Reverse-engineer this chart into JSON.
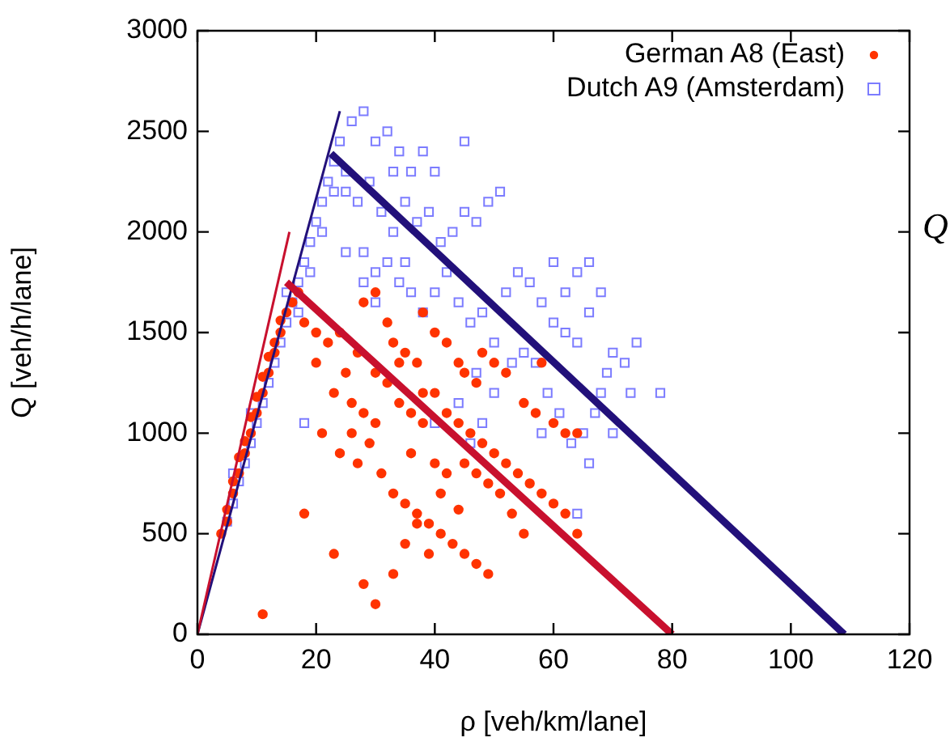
{
  "chart_data": {
    "type": "scatter",
    "xlabel": "ρ [veh/km/lane]",
    "ylabel": "Q [veh/h/lane]",
    "xlim": [
      0,
      120
    ],
    "xticks": [
      0,
      20,
      40,
      60,
      80,
      100,
      120
    ],
    "ylim": [
      0,
      3000
    ],
    "yticks": [
      0,
      500,
      1000,
      1500,
      2000,
      2500,
      3000
    ],
    "legend": "top right",
    "annotations": [
      "Q"
    ],
    "series": [
      {
        "name": "German A8 (East)",
        "color": "#ff3300",
        "marker": "circle",
        "x": [
          4,
          5,
          5,
          6,
          6,
          7,
          7,
          8,
          8,
          9,
          9,
          10,
          10,
          11,
          11,
          12,
          12,
          13,
          13,
          14,
          14,
          15,
          16,
          17,
          18,
          20,
          11,
          20,
          22,
          24,
          25,
          27,
          28,
          30,
          32,
          33,
          35,
          37,
          38,
          40,
          42,
          44,
          45,
          47,
          48,
          50,
          52,
          55,
          57,
          58,
          60,
          62,
          64,
          23,
          26,
          28,
          30,
          32,
          34,
          36,
          38,
          40,
          42,
          44,
          46,
          48,
          50,
          52,
          54,
          56,
          58,
          60,
          62,
          64,
          21,
          24,
          27,
          29,
          31,
          33,
          35,
          37,
          39,
          41,
          43,
          45,
          47,
          49,
          53,
          55,
          45,
          47,
          49,
          51,
          36,
          40,
          42,
          18,
          23,
          28,
          30,
          33,
          37,
          41,
          44,
          39,
          35,
          26,
          30,
          34,
          38
        ],
        "values": [
          500,
          560,
          620,
          700,
          760,
          800,
          880,
          900,
          960,
          1000,
          1080,
          1100,
          1180,
          1200,
          1280,
          1300,
          1380,
          1400,
          1450,
          1500,
          1560,
          1600,
          1650,
          1700,
          1550,
          1500,
          100,
          1350,
          1450,
          1500,
          1300,
          1400,
          1650,
          1700,
          1550,
          1450,
          1400,
          1350,
          1600,
          1500,
          1450,
          1350,
          1300,
          1250,
          1400,
          1350,
          1300,
          1150,
          1100,
          1350,
          1050,
          1000,
          1000,
          1200,
          1150,
          1100,
          1050,
          1250,
          1150,
          1100,
          1050,
          1200,
          1100,
          1050,
          1000,
          950,
          900,
          850,
          800,
          750,
          700,
          650,
          600,
          500,
          1000,
          900,
          850,
          950,
          800,
          700,
          650,
          600,
          550,
          500,
          450,
          400,
          350,
          300,
          600,
          500,
          850,
          800,
          750,
          700,
          900,
          850,
          800,
          600,
          400,
          250,
          150,
          300,
          550,
          700,
          620,
          400,
          450,
          1000,
          1300,
          1350,
          1200
        ]
      },
      {
        "name": "Dutch A9 (Amsterdam)",
        "color": "#5050ff",
        "marker": "square",
        "x": [
          5,
          6,
          7,
          8,
          9,
          10,
          11,
          12,
          13,
          14,
          15,
          16,
          17,
          18,
          19,
          20,
          21,
          22,
          23,
          24,
          15,
          17,
          19,
          21,
          23,
          25,
          6,
          9,
          18,
          26,
          28,
          30,
          32,
          34,
          36,
          25,
          27,
          29,
          31,
          33,
          35,
          37,
          39,
          41,
          43,
          45,
          47,
          49,
          51,
          28,
          30,
          32,
          34,
          36,
          38,
          40,
          42,
          44,
          46,
          48,
          50,
          52,
          54,
          56,
          58,
          60,
          62,
          64,
          66,
          68,
          70,
          72,
          74,
          60,
          62,
          64,
          66,
          55,
          57,
          59,
          61,
          63,
          65,
          67,
          69,
          68,
          50,
          48,
          46,
          44,
          66,
          40,
          35,
          25,
          40,
          38,
          45,
          33,
          28,
          30,
          47,
          53,
          73,
          70,
          64,
          58,
          78
        ],
        "values": [
          560,
          650,
          760,
          850,
          950,
          1050,
          1150,
          1250,
          1350,
          1450,
          1550,
          1650,
          1750,
          1850,
          1950,
          2050,
          2150,
          2250,
          2350,
          2450,
          1700,
          1600,
          1800,
          2000,
          2200,
          2300,
          800,
          1100,
          1050,
          2550,
          2600,
          2450,
          2500,
          2400,
          2300,
          2200,
          2150,
          2250,
          2100,
          2000,
          2150,
          2050,
          2100,
          1950,
          2000,
          2100,
          2050,
          2150,
          2200,
          1900,
          1800,
          1850,
          1750,
          1700,
          1600,
          1700,
          1800,
          1650,
          1550,
          1600,
          1450,
          1700,
          1800,
          1750,
          1650,
          1550,
          1500,
          1450,
          1600,
          1700,
          1400,
          1350,
          1450,
          1850,
          1700,
          1800,
          1850,
          1400,
          1350,
          1200,
          1100,
          950,
          1000,
          1100,
          1300,
          1200,
          1200,
          1050,
          950,
          1150,
          850,
          1050,
          1850,
          1900,
          2300,
          2400,
          2450,
          2300,
          1750,
          1650,
          1300,
          1350,
          1200,
          1000,
          600,
          1000,
          1200
        ]
      },
      {
        "type": "line",
        "color": "#c8102e",
        "marker": "none",
        "x": [
          0,
          15.5
        ],
        "values": [
          0,
          2000
        ]
      },
      {
        "type": "line",
        "color": "#c8102e",
        "marker": "none",
        "x": [
          15,
          80
        ],
        "values": [
          1750,
          0
        ]
      },
      {
        "type": "line",
        "color": "#22107a",
        "marker": "none",
        "x": [
          0,
          24
        ],
        "values": [
          0,
          2600
        ]
      },
      {
        "type": "line",
        "color": "#22107a",
        "marker": "none",
        "x": [
          22.5,
          109
        ],
        "values": [
          2390,
          0
        ]
      }
    ]
  }
}
